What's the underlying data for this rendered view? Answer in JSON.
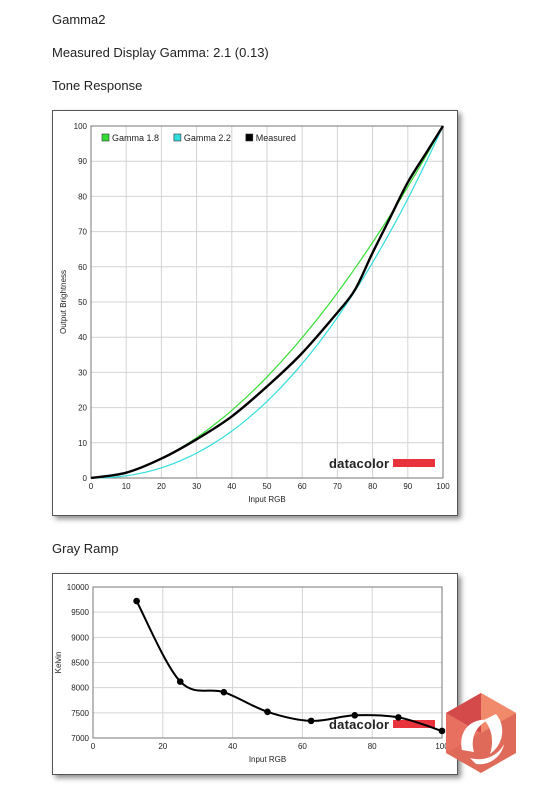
{
  "page": {
    "title": "Gamma2",
    "gamma_line": "Measured Display Gamma: 2.1 (0.13)",
    "tone_heading": "Tone Response",
    "gray_heading": "Gray Ramp"
  },
  "chart_data": [
    {
      "type": "line",
      "xlabel": "Input RGB",
      "ylabel": "Output Brightness",
      "xlim": [
        0,
        100
      ],
      "ylim": [
        0,
        100
      ],
      "xticks": [
        0,
        10,
        20,
        30,
        40,
        50,
        60,
        70,
        80,
        90,
        100
      ],
      "yticks": [
        0,
        10,
        20,
        30,
        40,
        50,
        60,
        70,
        80,
        90,
        100
      ],
      "grid": true,
      "legend_position": "top-left",
      "watermark": "datacolor",
      "series": [
        {
          "name": "Gamma 1.8",
          "color": "#33dd33",
          "gamma": 1.8
        },
        {
          "name": "Gamma 2.2",
          "color": "#33dddd",
          "gamma": 2.2
        },
        {
          "name": "Measured",
          "color": "#000000",
          "x": [
            0,
            10,
            20,
            30,
            40,
            50,
            60,
            70,
            75,
            80,
            85,
            90,
            95,
            100
          ],
          "y": [
            0,
            1.5,
            5.5,
            11,
            17.5,
            26,
            35.5,
            47,
            53.5,
            64,
            74,
            84,
            92,
            100
          ]
        }
      ]
    },
    {
      "type": "line",
      "xlabel": "Input RGB",
      "ylabel": "Kelvin",
      "xlim": [
        0,
        100
      ],
      "ylim": [
        7000,
        10000
      ],
      "xticks": [
        0,
        20,
        40,
        60,
        80,
        100
      ],
      "yticks": [
        7000,
        7500,
        8000,
        8500,
        9000,
        9500,
        10000
      ],
      "grid": true,
      "watermark": "datacolor",
      "series": [
        {
          "color": "#000000",
          "x": [
            12.5,
            25,
            37.5,
            50,
            62.5,
            75,
            87.5,
            100
          ],
          "y": [
            9720,
            8120,
            7910,
            7520,
            7340,
            7450,
            7410,
            7140
          ]
        }
      ]
    }
  ]
}
